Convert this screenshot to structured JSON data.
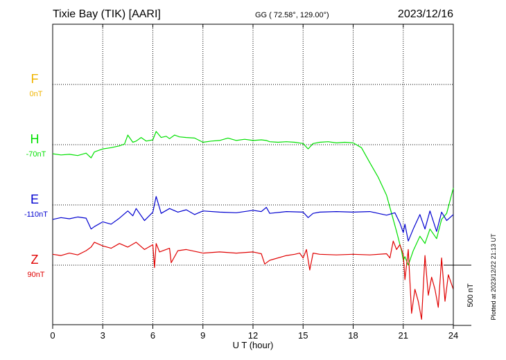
{
  "header": {
    "station": "Tixie Bay (TIK)  [AARI]",
    "coords": "GG ( 72.58°, 129.00°)",
    "date": "2023/12/16"
  },
  "footer": {
    "plotted": "Plotted at 2023/12/22 21:13 UT"
  },
  "scale": {
    "label": "500 nT",
    "value_nT": 500
  },
  "colors": {
    "F": "#f0b400",
    "H": "#00e000",
    "E": "#0000d0",
    "Z": "#e00000",
    "grid": "#000000",
    "axis": "#000000"
  },
  "chart_data": {
    "type": "line",
    "xlabel": "U T (hour)",
    "x_ticks": [
      "0",
      "3",
      "6",
      "9",
      "12",
      "15",
      "18",
      "21",
      "24"
    ],
    "xlim": [
      0,
      24
    ],
    "grid": true,
    "components": [
      {
        "key": "F",
        "name": "F",
        "baseline_label": "0nT",
        "color": "#f0b400",
        "x": [],
        "values": []
      },
      {
        "key": "H",
        "name": "H",
        "baseline_label": "-70nT",
        "color": "#00e000",
        "x": [
          0,
          0.5,
          1,
          1.5,
          2,
          2.3,
          2.5,
          3,
          3.5,
          4,
          4.3,
          4.5,
          4.8,
          5,
          5.3,
          5.6,
          6,
          6.2,
          6.5,
          6.8,
          7,
          7.3,
          7.6,
          8,
          8.5,
          9,
          9.5,
          10,
          10.5,
          11,
          11.5,
          12,
          12.5,
          12.8,
          13,
          13.5,
          14,
          14.5,
          15,
          15.3,
          15.6,
          16,
          16.5,
          17,
          17.5,
          18,
          18.5,
          19,
          19.5,
          20,
          20.3,
          20.6,
          20.9,
          21,
          21.1,
          21.3,
          21.6,
          22,
          22.3,
          22.6,
          23,
          23.3,
          23.6,
          24
        ],
        "values": [
          -75,
          -85,
          -80,
          -90,
          -70,
          -110,
          -60,
          -35,
          -25,
          -10,
          5,
          80,
          20,
          30,
          60,
          30,
          40,
          110,
          60,
          70,
          50,
          80,
          65,
          60,
          55,
          20,
          30,
          35,
          55,
          35,
          45,
          35,
          40,
          35,
          25,
          20,
          25,
          20,
          10,
          -35,
          10,
          20,
          25,
          15,
          20,
          15,
          -25,
          -150,
          -270,
          -420,
          -570,
          -720,
          -880,
          -960,
          -930,
          -1000,
          -880,
          -760,
          -820,
          -700,
          -780,
          -620,
          -570,
          -360
        ]
      },
      {
        "key": "E",
        "name": "E",
        "baseline_label": "-110nT",
        "color": "#0000d0",
        "x": [
          0,
          0.5,
          1,
          1.5,
          2,
          2.3,
          2.5,
          3,
          3.5,
          4,
          4.5,
          4.8,
          5,
          5.5,
          6,
          6.2,
          6.5,
          7,
          7.5,
          8,
          8.5,
          9,
          10,
          11,
          12,
          12.5,
          12.8,
          13,
          14,
          15,
          15.3,
          15.6,
          16,
          17,
          18,
          19,
          20,
          20.5,
          20.8,
          21,
          21.1,
          21.3,
          21.6,
          22,
          22.3,
          22.6,
          23,
          23.3,
          23.6,
          24
        ],
        "values": [
          -120,
          -105,
          -115,
          -100,
          -110,
          -200,
          -180,
          -140,
          -160,
          -110,
          -50,
          -90,
          -30,
          -130,
          -60,
          70,
          -70,
          -30,
          -60,
          -40,
          -80,
          -50,
          -60,
          -65,
          -45,
          -55,
          -20,
          -70,
          -55,
          -60,
          -105,
          -70,
          -60,
          -55,
          -60,
          -55,
          -85,
          -65,
          -150,
          -230,
          -160,
          -300,
          -200,
          -80,
          -200,
          -50,
          -220,
          -60,
          -130,
          -80
        ]
      },
      {
        "key": "Z",
        "name": "Z",
        "baseline_label": "90nT",
        "color": "#e00000",
        "x": [
          0,
          0.5,
          1,
          1.5,
          2,
          2.3,
          2.5,
          3,
          3.5,
          4,
          4.5,
          5,
          5.5,
          6,
          6.1,
          6.2,
          6.4,
          7,
          7.1,
          7.5,
          8,
          9,
          10,
          11,
          12,
          12.5,
          12.7,
          13,
          14,
          14.5,
          14.8,
          15,
          15.2,
          15.4,
          15.6,
          16,
          17,
          18,
          19,
          20,
          20.2,
          20.4,
          20.6,
          20.8,
          21,
          21.1,
          21.3,
          21.5,
          21.7,
          21.9,
          22.1,
          22.3,
          22.5,
          22.7,
          22.9,
          23.1,
          23.3,
          23.5,
          23.7,
          24
        ],
        "values": [
          90,
          80,
          100,
          85,
          120,
          150,
          190,
          160,
          140,
          180,
          150,
          190,
          130,
          170,
          -20,
          180,
          110,
          140,
          20,
          120,
          130,
          100,
          110,
          100,
          110,
          95,
          10,
          40,
          80,
          90,
          100,
          60,
          130,
          -40,
          100,
          90,
          85,
          90,
          85,
          95,
          60,
          200,
          130,
          170,
          90,
          -120,
          130,
          -400,
          -200,
          -300,
          -450,
          80,
          -250,
          -100,
          -200,
          -350,
          60,
          -300,
          -80,
          -200
        ]
      }
    ]
  }
}
